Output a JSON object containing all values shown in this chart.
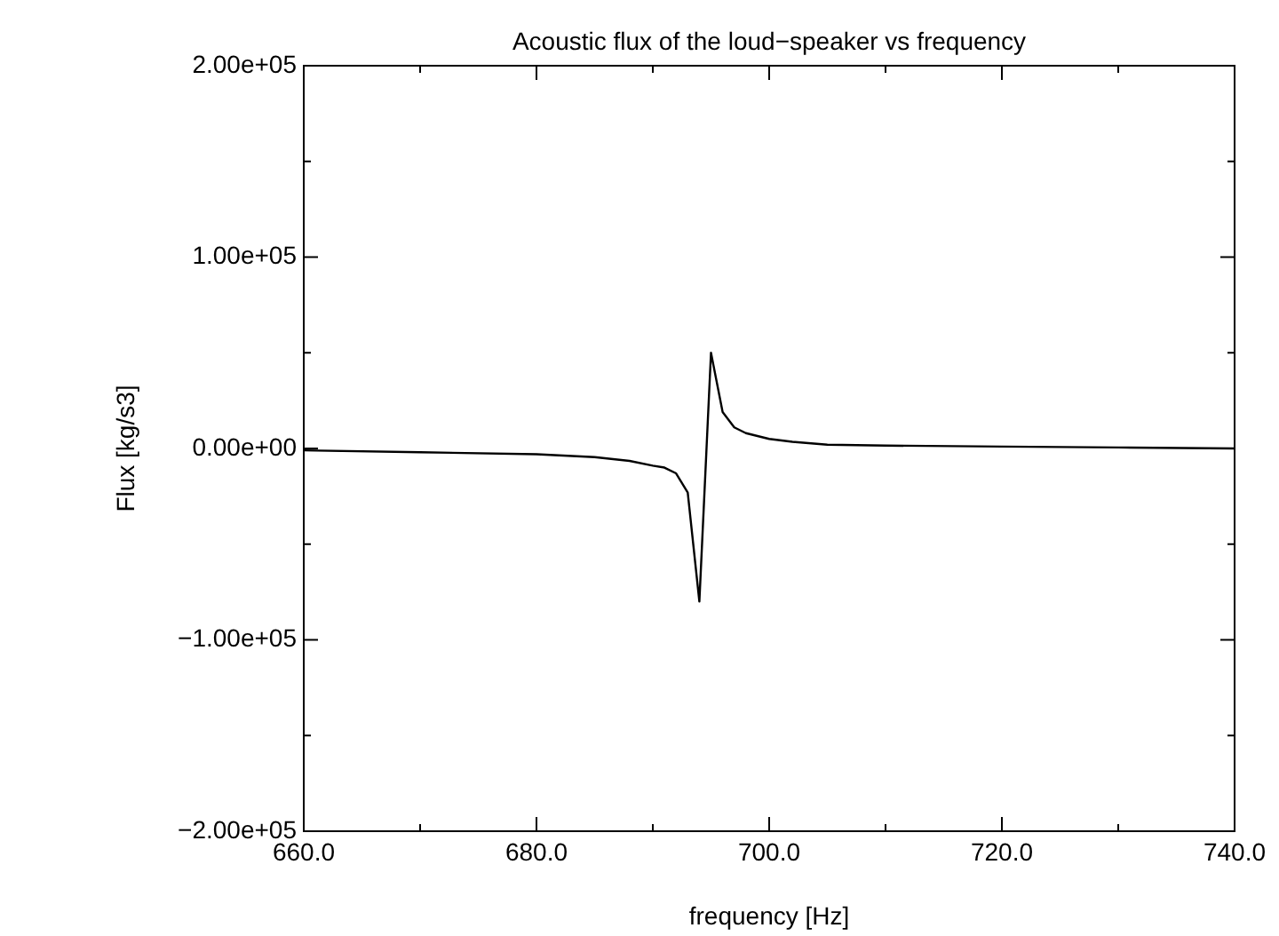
{
  "chart_data": {
    "type": "line",
    "title": "Acoustic flux of the loud−speaker vs frequency",
    "xlabel": "frequency [Hz]",
    "ylabel": "Flux [kg/s3]",
    "x": [
      660,
      670,
      680,
      685,
      688,
      690,
      691,
      692,
      693,
      694,
      695,
      696,
      697,
      698,
      700,
      702,
      705,
      710,
      720,
      730,
      740
    ],
    "series": [
      {
        "color": "#000000",
        "values": [
          -1000,
          -2000,
          -3000,
          -4500,
          -6500,
          -9000,
          -10000,
          -13000,
          -23000,
          -80000,
          50000,
          19000,
          11000,
          8000,
          5000,
          3500,
          2000,
          1500,
          1000,
          500,
          0
        ]
      }
    ],
    "xlim": [
      660,
      740
    ],
    "xticks": [
      {
        "value": 660,
        "label": "660.0"
      },
      {
        "value": 670,
        "label": null
      },
      {
        "value": 680,
        "label": "680.0"
      },
      {
        "value": 690,
        "label": null
      },
      {
        "value": 700,
        "label": "700.0"
      },
      {
        "value": 710,
        "label": null
      },
      {
        "value": 720,
        "label": "720.0"
      },
      {
        "value": 730,
        "label": null
      },
      {
        "value": 740,
        "label": "740.0"
      }
    ],
    "ylim": [
      -200000,
      200000
    ],
    "yticks": [
      {
        "value": -200000,
        "label": "−2.00e+05"
      },
      {
        "value": -150000,
        "label": null
      },
      {
        "value": -100000,
        "label": "−1.00e+05"
      },
      {
        "value": -50000,
        "label": null
      },
      {
        "value": 0,
        "label": "0.00e+00"
      },
      {
        "value": 50000,
        "label": null
      },
      {
        "value": 100000,
        "label": "1.00e+05"
      },
      {
        "value": 150000,
        "label": null
      },
      {
        "value": 200000,
        "label": "2.00e+05"
      }
    ],
    "grid": false,
    "legend": false,
    "marker": "none",
    "line_style": "solid"
  }
}
